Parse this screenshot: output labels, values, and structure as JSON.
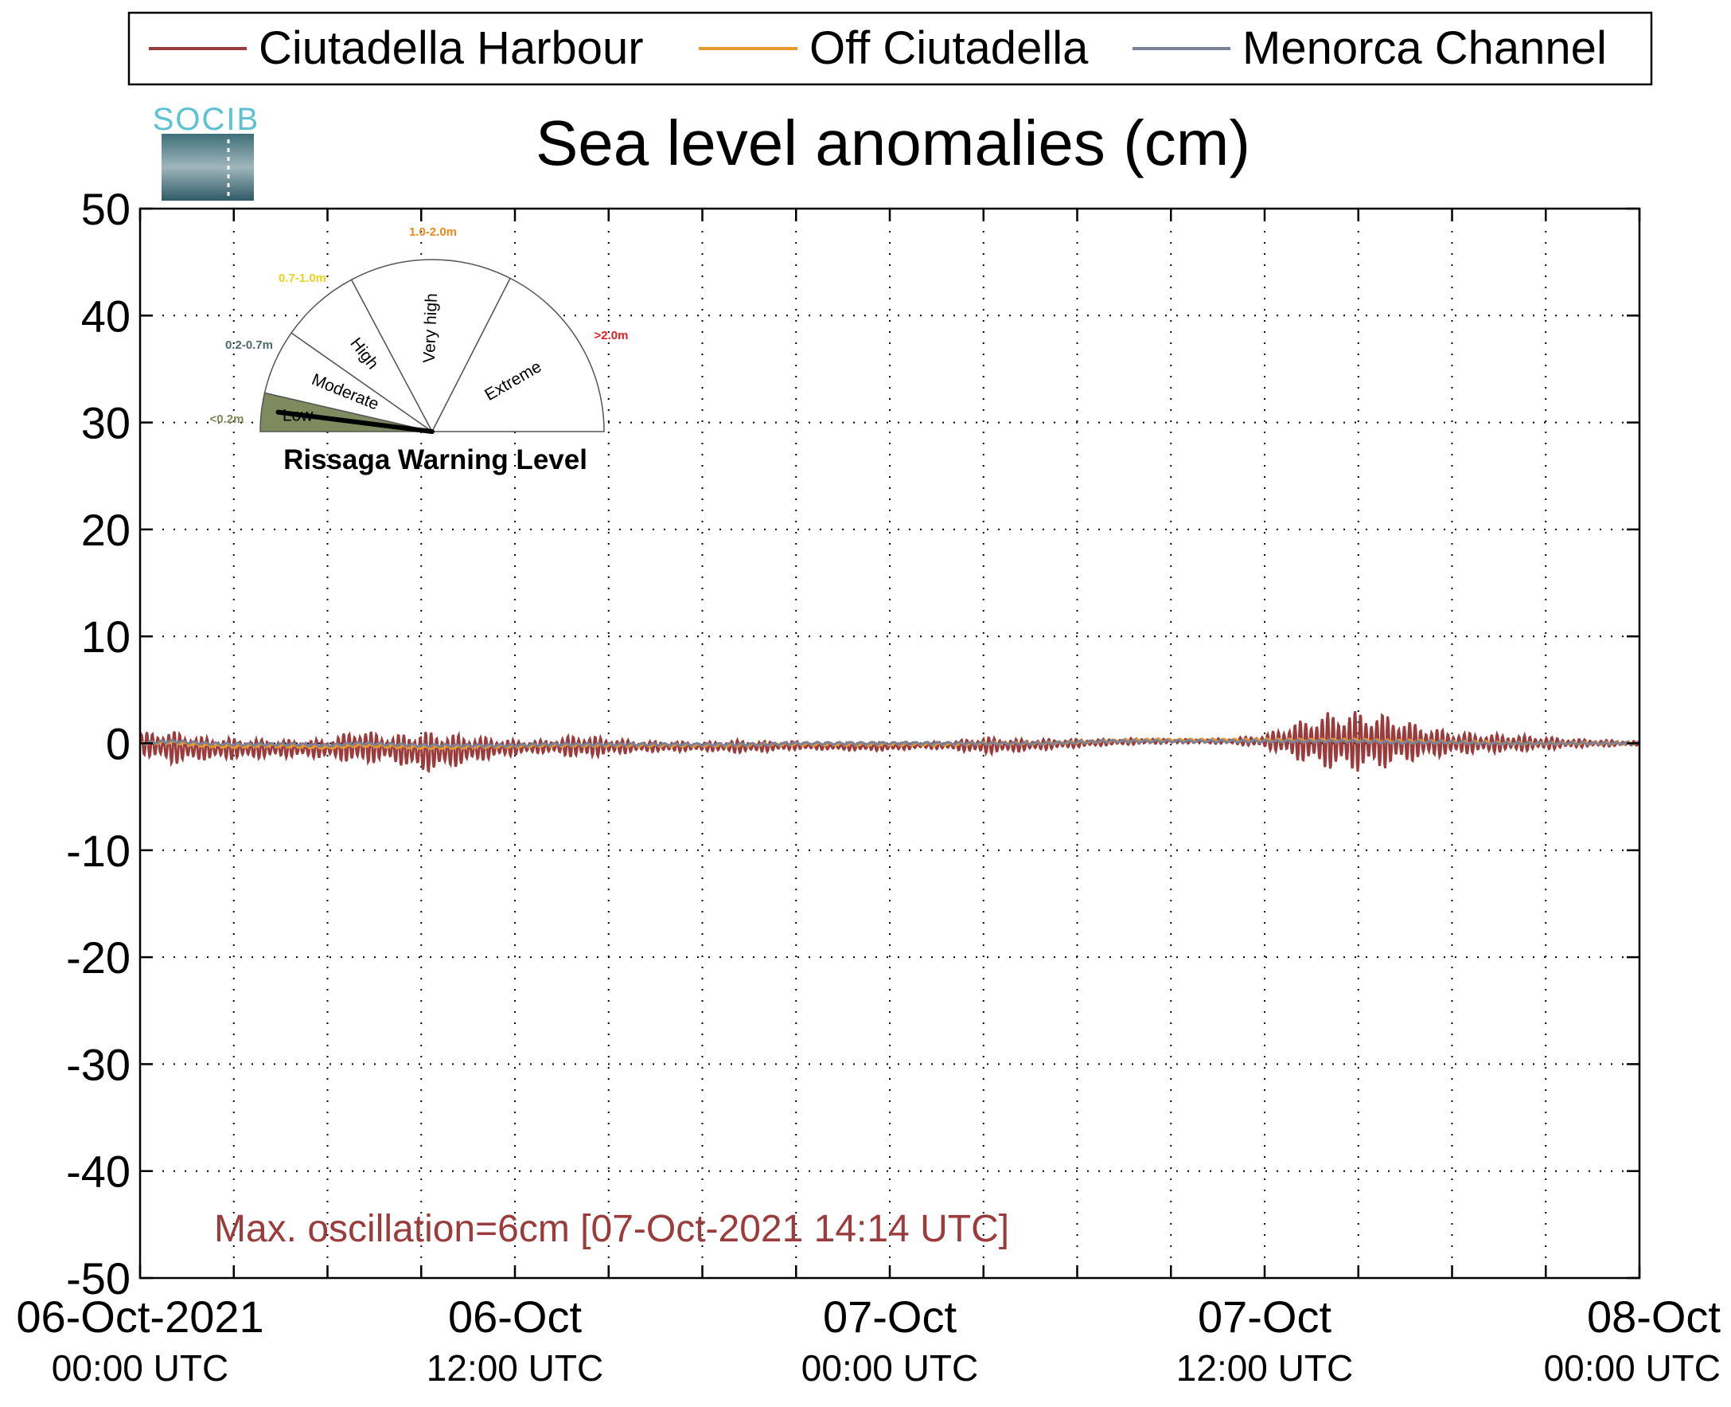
{
  "logo": {
    "text": "SOCIB"
  },
  "chart_data": {
    "type": "line",
    "title": "Sea level anomalies (cm)",
    "xlabel": "",
    "ylabel": "",
    "ylim": [
      -50,
      50
    ],
    "yticks": [
      50,
      40,
      30,
      20,
      10,
      0,
      -10,
      -20,
      -30,
      -40,
      -50
    ],
    "ytick_labels": [
      "50",
      "40",
      "30",
      "20",
      "10",
      "0",
      "-10",
      "-20",
      "-30",
      "-40",
      "-50"
    ],
    "xlim_hours": [
      0,
      48
    ],
    "x_minor_tick_hours": [
      3,
      6,
      9,
      15,
      18,
      21,
      27,
      30,
      33,
      39,
      42,
      45
    ],
    "x_major_ticks": [
      {
        "hour": 0,
        "line1": "06-Oct-2021",
        "line2": "00:00 UTC"
      },
      {
        "hour": 12,
        "line1": "06-Oct",
        "line2": "12:00 UTC"
      },
      {
        "hour": 24,
        "line1": "07-Oct",
        "line2": "00:00 UTC"
      },
      {
        "hour": 36,
        "line1": "07-Oct",
        "line2": "12:00 UTC"
      },
      {
        "hour": 48,
        "line1": "08-Oct",
        "line2": "00:00 UTC"
      }
    ],
    "grid": true,
    "legend_position": "top",
    "series": [
      {
        "name": "Ciutadella Harbour",
        "color": "#9b3b3b",
        "envelope_hours": [
          0,
          1,
          2,
          3,
          4,
          5,
          6,
          7,
          8,
          9,
          10,
          11,
          12,
          13,
          14,
          15,
          16,
          17,
          18,
          19,
          20,
          21,
          22,
          23,
          24,
          25,
          26,
          27,
          28,
          29,
          30,
          31,
          32,
          33,
          34,
          35,
          36,
          37,
          38,
          39,
          40,
          41,
          42,
          43,
          44,
          45,
          46,
          47,
          48
        ],
        "amplitude_cm": [
          1.0,
          1.6,
          1.1,
          1.0,
          0.9,
          0.8,
          0.9,
          1.7,
          1.2,
          2.0,
          1.6,
          1.1,
          0.7,
          0.6,
          1.1,
          0.8,
          0.5,
          0.5,
          0.4,
          0.6,
          0.5,
          0.4,
          0.3,
          0.4,
          0.4,
          0.3,
          0.4,
          0.8,
          0.6,
          0.5,
          0.4,
          0.3,
          0.3,
          0.2,
          0.2,
          0.3,
          0.6,
          1.8,
          2.7,
          2.9,
          2.5,
          1.6,
          1.1,
          0.9,
          0.8,
          0.6,
          0.4,
          0.3,
          0.2
        ],
        "mean_cm": [
          0.0,
          -0.4,
          -0.5,
          -0.5,
          -0.5,
          -0.5,
          -0.5,
          -0.3,
          -0.5,
          -0.8,
          -0.7,
          -0.5,
          -0.4,
          -0.3,
          -0.3,
          -0.3,
          -0.3,
          -0.3,
          -0.3,
          -0.3,
          -0.3,
          -0.2,
          -0.3,
          -0.3,
          -0.3,
          -0.2,
          -0.2,
          -0.2,
          -0.2,
          -0.1,
          0.0,
          0.1,
          0.2,
          0.2,
          0.2,
          0.2,
          0.2,
          0.2,
          0.2,
          0.2,
          0.2,
          0.1,
          0.0,
          0.0,
          0.0,
          0.0,
          0.0,
          0.0,
          0.0
        ],
        "oscillation_period_min": 10.5
      },
      {
        "name": "Off Ciutadella",
        "color": "#e5992e",
        "mean_cm": [
          0.0,
          0.1,
          -0.2,
          -0.3,
          -0.2,
          -0.3,
          -0.4,
          -0.2,
          -0.3,
          -0.4,
          -0.4,
          -0.3,
          -0.3,
          -0.2,
          -0.2,
          -0.2,
          -0.2,
          -0.2,
          -0.2,
          -0.2,
          -0.1,
          -0.1,
          -0.1,
          -0.1,
          -0.1,
          -0.1,
          -0.1,
          0.0,
          0.0,
          0.0,
          0.1,
          0.2,
          0.3,
          0.3,
          0.3,
          0.3,
          0.3,
          0.3,
          0.3,
          0.3,
          0.2,
          0.2,
          0.1,
          0.1,
          0.0,
          0.0,
          0.0,
          0.0,
          0.0
        ]
      },
      {
        "name": "Menorca Channel",
        "color": "#7b8196",
        "mean_cm": [
          0.0,
          0.2,
          0.0,
          -0.1,
          -0.1,
          -0.1,
          -0.2,
          0.0,
          -0.1,
          -0.2,
          -0.2,
          -0.2,
          -0.2,
          -0.1,
          -0.1,
          -0.1,
          -0.1,
          -0.1,
          -0.1,
          -0.1,
          -0.1,
          0.0,
          0.0,
          0.0,
          0.0,
          0.0,
          0.0,
          0.0,
          0.0,
          0.0,
          0.1,
          0.2,
          0.2,
          0.2,
          0.2,
          0.2,
          0.2,
          0.2,
          0.2,
          0.2,
          0.1,
          0.1,
          0.1,
          0.0,
          0.0,
          0.0,
          0.0,
          0.0,
          0.0
        ]
      }
    ],
    "annotation": {
      "text": "Max. oscillation=6cm [07-Oct-2021 14:14 UTC]",
      "color": "#9b3b3b"
    }
  },
  "gauge": {
    "title": "Rissaga Warning Level",
    "current_level": "Low",
    "needle_fraction": 0.04,
    "segments": [
      {
        "label": "Low",
        "range": "<0.2m",
        "range_color": "#7d8a58",
        "fill": "#7f8a5e",
        "active": true
      },
      {
        "label": "Moderate",
        "range": "0.2-0.7m",
        "range_color": "#4f6b6b",
        "fill": "#ffffff",
        "active": false
      },
      {
        "label": "High",
        "range": "0.7-1.0m",
        "range_color": "#e8d21c",
        "fill": "#ffffff",
        "active": false
      },
      {
        "label": "Very high",
        "range": "1.0-2.0m",
        "range_color": "#e98a1a",
        "fill": "#ffffff",
        "active": false
      },
      {
        "label": "Extreme",
        "range": ">2.0m",
        "range_color": "#e02020",
        "fill": "#ffffff",
        "active": false
      }
    ]
  }
}
